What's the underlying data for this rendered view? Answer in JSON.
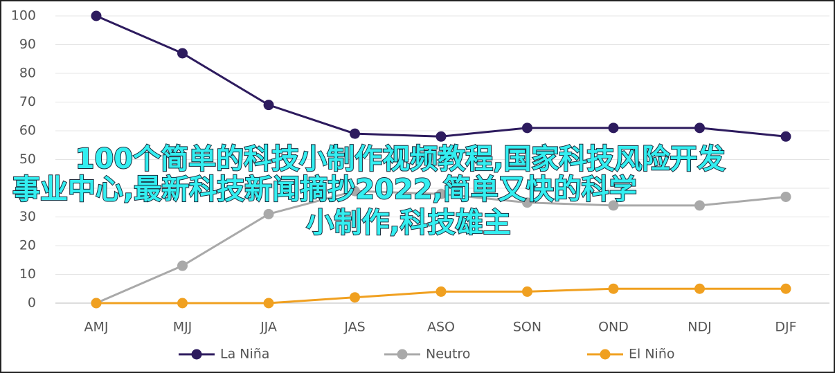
{
  "chart_data": {
    "type": "line",
    "categories": [
      "AMJ",
      "MJJ",
      "JJA",
      "JAS",
      "ASO",
      "SON",
      "OND",
      "NDJ",
      "DJF"
    ],
    "series": [
      {
        "name": "La Niña",
        "color": "#2d1b5e",
        "values": [
          100,
          87,
          69,
          59,
          58,
          61,
          61,
          61,
          58
        ]
      },
      {
        "name": "Neutro",
        "color": "#a9a9a9",
        "values": [
          0,
          13,
          31,
          39,
          38,
          35,
          34,
          34,
          37
        ]
      },
      {
        "name": "El Niño",
        "color": "#f0a020",
        "values": [
          0,
          0,
          0,
          2,
          4,
          4,
          5,
          5,
          5
        ]
      }
    ],
    "ylim": [
      0,
      100
    ],
    "yticks": [
      0,
      10,
      20,
      30,
      40,
      50,
      60,
      70,
      80,
      90,
      100
    ],
    "grid": true,
    "legend": "bottom",
    "overlay_text": [
      "100个简单的科技小制作视频教程,国家科技风险开发",
      "事业中心,最新科技新闻摘抄2022,简单又快的科学",
      "小制作,科技雄主"
    ]
  }
}
